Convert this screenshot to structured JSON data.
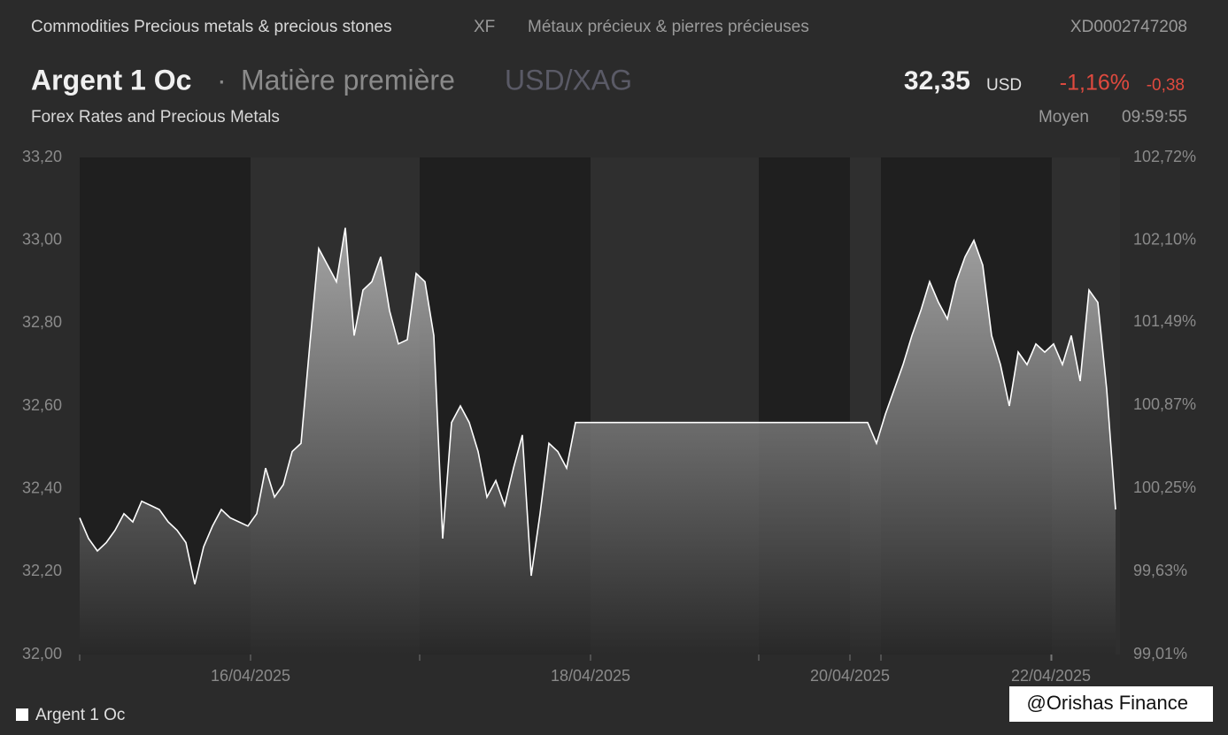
{
  "header": {
    "breadcrumb": "Commodities Precious metals & precious stones",
    "exchange": "XF",
    "breadcrumb_fr": "Métaux précieux & pierres précieuses",
    "isin": "XD0002747208",
    "name": "Argent 1 Oc",
    "separator": "·",
    "category": "Matière première",
    "pair": "USD/XAG",
    "price": "32,35",
    "currency": "USD",
    "change_pct": "-1,16%",
    "change_abs": "-0,38",
    "source": "Forex Rates and Precious Metals",
    "price_type": "Moyen",
    "time": "09:59:55"
  },
  "chart_data": {
    "type": "line",
    "series": [
      {
        "name": "Argent 1 Oc",
        "color": "#ffffff",
        "values": [
          32.33,
          32.28,
          32.25,
          32.27,
          32.3,
          32.34,
          32.32,
          32.37,
          32.36,
          32.35,
          32.32,
          32.3,
          32.27,
          32.17,
          32.26,
          32.31,
          32.35,
          32.33,
          32.32,
          32.31,
          32.34,
          32.45,
          32.38,
          32.41,
          32.49,
          32.51,
          32.75,
          32.98,
          32.94,
          32.9,
          33.03,
          32.77,
          32.88,
          32.9,
          32.96,
          32.83,
          32.75,
          32.76,
          32.92,
          32.9,
          32.77,
          32.28,
          32.56,
          32.6,
          32.56,
          32.49,
          32.38,
          32.42,
          32.36,
          32.45,
          32.53,
          32.19,
          32.34,
          32.51,
          32.49,
          32.45,
          32.56,
          32.56,
          32.56,
          32.56,
          32.56,
          32.56,
          32.56,
          32.56,
          32.56,
          32.56,
          32.56,
          32.56,
          32.56,
          32.56,
          32.56,
          32.56,
          32.56,
          32.56,
          32.56,
          32.56,
          32.56,
          32.56,
          32.56,
          32.56,
          32.56,
          32.56,
          32.56,
          32.56,
          32.56,
          32.56,
          32.56,
          32.56,
          32.56,
          32.56,
          32.51,
          32.58,
          32.64,
          32.7,
          32.77,
          32.83,
          32.9,
          32.85,
          32.81,
          32.9,
          32.96,
          33.0,
          32.94,
          32.77,
          32.7,
          32.6,
          32.73,
          32.7,
          32.75,
          32.73,
          32.75,
          32.7,
          32.77,
          32.66,
          32.88,
          32.85,
          32.64,
          32.35
        ]
      }
    ],
    "xlim": [
      0,
      117.5
    ],
    "xticks": [
      {
        "value": 19.3,
        "label": "16/04/2025"
      },
      {
        "value": 57.7,
        "label": "18/04/2025"
      },
      {
        "value": 87,
        "label": "20/04/2025"
      },
      {
        "value": 109.7,
        "label": "22/04/2025"
      }
    ],
    "shaded_bands": [
      [
        0,
        19.3
      ],
      [
        38.4,
        57.7
      ],
      [
        76.7,
        87
      ],
      [
        90.5,
        109.8
      ]
    ],
    "ylim": [
      32.0,
      33.2
    ],
    "yticks": [
      {
        "value": 32.0,
        "label": "32,00"
      },
      {
        "value": 32.2,
        "label": "32,20"
      },
      {
        "value": 32.4,
        "label": "32,40"
      },
      {
        "value": 32.6,
        "label": "32,60"
      },
      {
        "value": 32.8,
        "label": "32,80"
      },
      {
        "value": 33.0,
        "label": "33,00"
      },
      {
        "value": 33.2,
        "label": "33,20"
      }
    ],
    "y2lim": [
      99.01,
      102.72
    ],
    "y2ticks": [
      {
        "value": 99.01,
        "label": "99,01%"
      },
      {
        "value": 99.63,
        "label": "99,63%"
      },
      {
        "value": 100.25,
        "label": "100,25%"
      },
      {
        "value": 100.87,
        "label": "100,87%"
      },
      {
        "value": 101.49,
        "label": "101,49%"
      },
      {
        "value": 102.1,
        "label": "102,10%"
      },
      {
        "value": 102.72,
        "label": "102,72%"
      }
    ],
    "legend": "bottom-left"
  },
  "watermark": "@Orishas Finance"
}
